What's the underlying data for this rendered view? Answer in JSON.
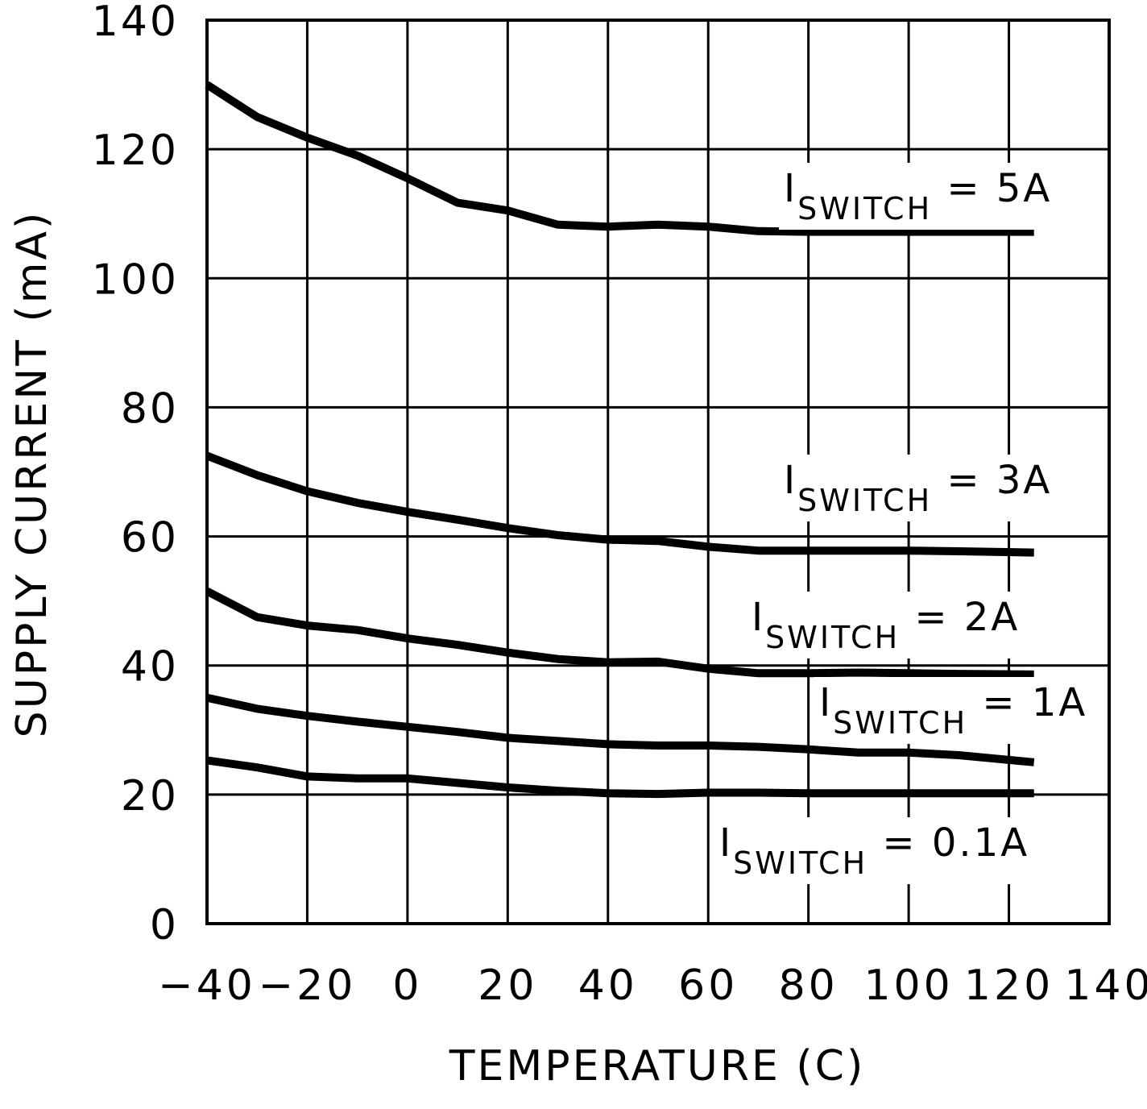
{
  "chart_data": {
    "type": "line",
    "title": "",
    "xlabel": "TEMPERATURE (C)",
    "ylabel": "SUPPLY CURRENT (mA)",
    "xlim": [
      -40,
      140
    ],
    "ylim": [
      0,
      140
    ],
    "xticks": [
      -40,
      -20,
      0,
      20,
      40,
      60,
      80,
      100,
      120,
      140
    ],
    "yticks": [
      0,
      20,
      40,
      60,
      80,
      100,
      120,
      140
    ],
    "x_tick_labels": [
      "-40",
      "-20",
      "0",
      "20",
      "40",
      "60",
      "80",
      "100",
      "120",
      "140"
    ],
    "y_tick_labels": [
      "0",
      "20",
      "40",
      "60",
      "80",
      "100",
      "120",
      "140"
    ],
    "grid": true,
    "line_color": "#000000",
    "series": [
      {
        "label_main": "I",
        "label_sub": "SWITCH",
        "label_value": " = 5A",
        "points": [
          [
            -40,
            130
          ],
          [
            -30,
            125
          ],
          [
            -20,
            121.8
          ],
          [
            -10,
            119
          ],
          [
            0,
            115.5
          ],
          [
            10,
            111.7
          ],
          [
            20,
            110.5
          ],
          [
            30,
            108.3
          ],
          [
            40,
            108
          ],
          [
            50,
            108.3
          ],
          [
            60,
            108
          ],
          [
            70,
            107.3
          ],
          [
            80,
            107.2
          ],
          [
            90,
            107.2
          ],
          [
            100,
            107.2
          ],
          [
            110,
            107.2
          ],
          [
            125,
            107.2
          ]
        ]
      },
      {
        "label_main": "I",
        "label_sub": "SWITCH",
        "label_value": " = 3A",
        "points": [
          [
            -40,
            72.5
          ],
          [
            -30,
            69.5
          ],
          [
            -20,
            67
          ],
          [
            -10,
            65.2
          ],
          [
            0,
            63.8
          ],
          [
            10,
            62.6
          ],
          [
            20,
            61.3
          ],
          [
            30,
            60.2
          ],
          [
            40,
            59.5
          ],
          [
            50,
            59.3
          ],
          [
            60,
            58.4
          ],
          [
            70,
            57.8
          ],
          [
            80,
            57.8
          ],
          [
            90,
            57.8
          ],
          [
            100,
            57.8
          ],
          [
            110,
            57.7
          ],
          [
            125,
            57.5
          ]
        ]
      },
      {
        "label_main": "I",
        "label_sub": "SWITCH",
        "label_value": " = 2A",
        "points": [
          [
            -40,
            51.5
          ],
          [
            -30,
            47.5
          ],
          [
            -20,
            46.2
          ],
          [
            -10,
            45.5
          ],
          [
            0,
            44.2
          ],
          [
            10,
            43.2
          ],
          [
            20,
            42
          ],
          [
            30,
            41
          ],
          [
            40,
            40.5
          ],
          [
            50,
            40.6
          ],
          [
            60,
            39.5
          ],
          [
            70,
            38.8
          ],
          [
            80,
            38.8
          ],
          [
            90,
            38.9
          ],
          [
            100,
            38.8
          ],
          [
            110,
            38.7
          ],
          [
            125,
            38.6
          ]
        ]
      },
      {
        "label_main": "I",
        "label_sub": "SWITCH",
        "label_value": " = 1A",
        "points": [
          [
            -40,
            35
          ],
          [
            -30,
            33.3
          ],
          [
            -20,
            32.2
          ],
          [
            -10,
            31.3
          ],
          [
            0,
            30.5
          ],
          [
            10,
            29.7
          ],
          [
            20,
            28.8
          ],
          [
            30,
            28.3
          ],
          [
            40,
            27.8
          ],
          [
            50,
            27.6
          ],
          [
            60,
            27.6
          ],
          [
            70,
            27.4
          ],
          [
            80,
            27
          ],
          [
            90,
            26.5
          ],
          [
            100,
            26.5
          ],
          [
            110,
            26.1
          ],
          [
            125,
            25
          ]
        ]
      },
      {
        "label_main": "I",
        "label_sub": "SWITCH",
        "label_value": " = 0.1A",
        "points": [
          [
            -40,
            25.3
          ],
          [
            -30,
            24.2
          ],
          [
            -20,
            22.8
          ],
          [
            -10,
            22.5
          ],
          [
            0,
            22.5
          ],
          [
            10,
            21.8
          ],
          [
            20,
            21.1
          ],
          [
            30,
            20.6
          ],
          [
            40,
            20.2
          ],
          [
            50,
            20.1
          ],
          [
            60,
            20.3
          ],
          [
            70,
            20.3
          ],
          [
            80,
            20.2
          ],
          [
            90,
            20.2
          ],
          [
            100,
            20.2
          ],
          [
            110,
            20.2
          ],
          [
            125,
            20.2
          ]
        ]
      }
    ]
  }
}
